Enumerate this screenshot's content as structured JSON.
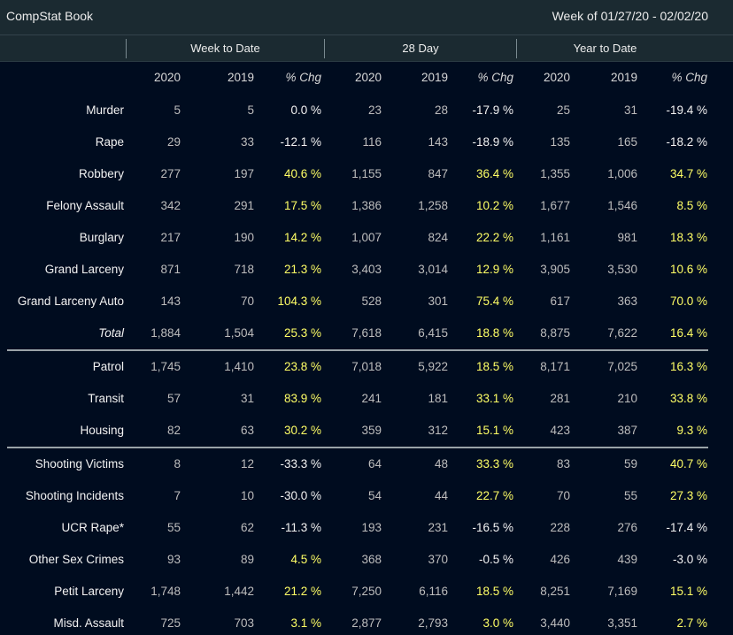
{
  "header": {
    "title": "CompStat Book",
    "week": "Week of 01/27/20 - 02/02/20"
  },
  "groups": [
    "Week to Date",
    "28 Day",
    "Year to Date"
  ],
  "columns": [
    "2020",
    "2019",
    "% Chg",
    "2020",
    "2019",
    "% Chg",
    "2020",
    "2019",
    "% Chg"
  ],
  "rows": [
    {
      "label": "Murder",
      "values": [
        "5",
        "5",
        "0.0 %",
        "23",
        "28",
        "-17.9 %",
        "25",
        "31",
        "-19.4 %"
      ]
    },
    {
      "label": "Rape",
      "values": [
        "29",
        "33",
        "-12.1 %",
        "116",
        "143",
        "-18.9 %",
        "135",
        "165",
        "-18.2 %"
      ]
    },
    {
      "label": "Robbery",
      "values": [
        "277",
        "197",
        "40.6 %",
        "1,155",
        "847",
        "36.4 %",
        "1,355",
        "1,006",
        "34.7 %"
      ]
    },
    {
      "label": "Felony Assault",
      "values": [
        "342",
        "291",
        "17.5 %",
        "1,386",
        "1,258",
        "10.2 %",
        "1,677",
        "1,546",
        "8.5 %"
      ]
    },
    {
      "label": "Burglary",
      "values": [
        "217",
        "190",
        "14.2 %",
        "1,007",
        "824",
        "22.2 %",
        "1,161",
        "981",
        "18.3 %"
      ]
    },
    {
      "label": "Grand Larceny",
      "values": [
        "871",
        "718",
        "21.3 %",
        "3,403",
        "3,014",
        "12.9 %",
        "3,905",
        "3,530",
        "10.6 %"
      ]
    },
    {
      "label": "Grand Larceny Auto",
      "values": [
        "143",
        "70",
        "104.3 %",
        "528",
        "301",
        "75.4 %",
        "617",
        "363",
        "70.0 %"
      ]
    },
    {
      "label": "Total",
      "values": [
        "1,884",
        "1,504",
        "25.3 %",
        "7,618",
        "6,415",
        "18.8 %",
        "8,875",
        "7,622",
        "16.4 %"
      ]
    },
    {
      "label": "Patrol",
      "values": [
        "1,745",
        "1,410",
        "23.8 %",
        "7,018",
        "5,922",
        "18.5 %",
        "8,171",
        "7,025",
        "16.3 %"
      ]
    },
    {
      "label": "Transit",
      "values": [
        "57",
        "31",
        "83.9 %",
        "241",
        "181",
        "33.1 %",
        "281",
        "210",
        "33.8 %"
      ]
    },
    {
      "label": "Housing",
      "values": [
        "82",
        "63",
        "30.2 %",
        "359",
        "312",
        "15.1 %",
        "423",
        "387",
        "9.3 %"
      ]
    },
    {
      "label": "Shooting Victims",
      "values": [
        "8",
        "12",
        "-33.3 %",
        "64",
        "48",
        "33.3 %",
        "83",
        "59",
        "40.7 %"
      ]
    },
    {
      "label": "Shooting Incidents",
      "values": [
        "7",
        "10",
        "-30.0 %",
        "54",
        "44",
        "22.7 %",
        "70",
        "55",
        "27.3 %"
      ]
    },
    {
      "label": "UCR Rape*",
      "values": [
        "55",
        "62",
        "-11.3 %",
        "193",
        "231",
        "-16.5 %",
        "228",
        "276",
        "-17.4 %"
      ]
    },
    {
      "label": "Other Sex Crimes",
      "values": [
        "93",
        "89",
        "4.5 %",
        "368",
        "370",
        "-0.5 %",
        "426",
        "439",
        "-3.0 %"
      ]
    },
    {
      "label": "Petit Larceny",
      "values": [
        "1,748",
        "1,442",
        "21.2 %",
        "7,250",
        "6,116",
        "18.5 %",
        "8,251",
        "7,169",
        "15.1 %"
      ]
    },
    {
      "label": "Misd. Assault",
      "values": [
        "725",
        "703",
        "3.1 %",
        "2,877",
        "2,793",
        "3.0 %",
        "3,440",
        "3,351",
        "2.7 %"
      ]
    }
  ],
  "colors": {
    "increase": "#ffff66",
    "decrease_or_flat": "#f2f2f2",
    "count": "#bdbdbd",
    "background": "#000c1f",
    "bar": "#1b2a31"
  }
}
